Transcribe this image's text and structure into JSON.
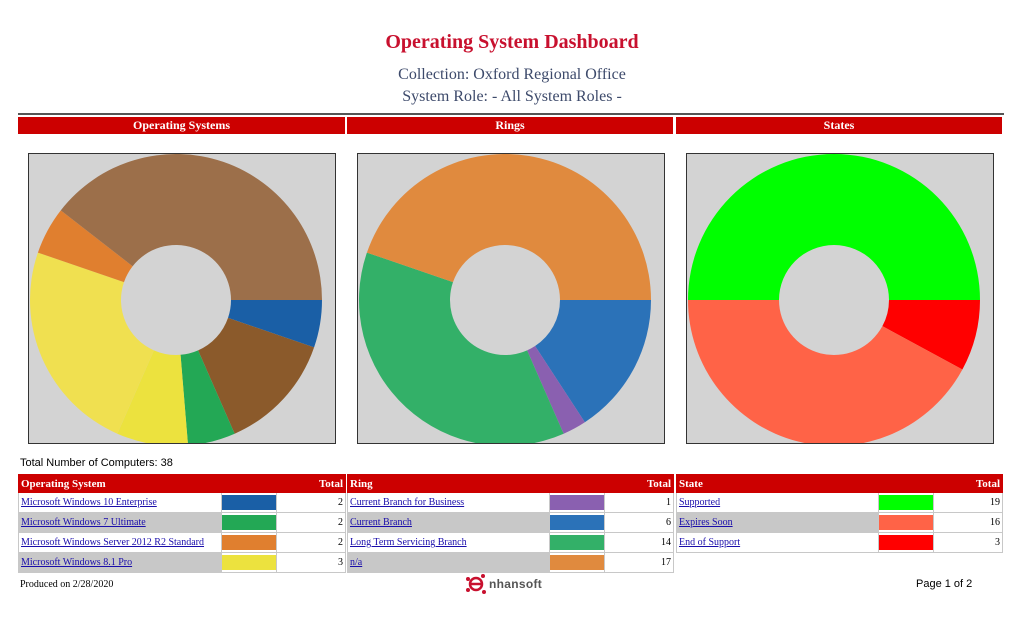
{
  "header": {
    "title": "Operating System Dashboard",
    "collection": "Collection: Oxford Regional Office",
    "system_role": "System Role: - All System Roles -"
  },
  "sections": {
    "os": "Operating Systems",
    "rings": "Rings",
    "states": "States"
  },
  "total_computers": "Total Number of Computers:  38",
  "tables": {
    "os": {
      "col_name": "Operating System",
      "col_total": "Total",
      "rows": [
        {
          "name": "Microsoft Windows 10 Enterprise",
          "color": "#1a5fa6",
          "total": "2"
        },
        {
          "name": "Microsoft Windows 7 Ultimate",
          "color": "#23a855",
          "total": "2"
        },
        {
          "name": "Microsoft Windows Server 2012 R2 Standard",
          "color": "#e07f2f",
          "total": "2"
        },
        {
          "name": "Microsoft Windows 8.1 Pro",
          "color": "#ece23e",
          "total": "3"
        }
      ]
    },
    "ring": {
      "col_name": "Ring",
      "col_total": "Total",
      "rows": [
        {
          "name": "Current Branch for Business",
          "color": "#8a60b0",
          "total": "1"
        },
        {
          "name": "Current Branch",
          "color": "#2b72b8",
          "total": "6"
        },
        {
          "name": "Long Term Servicing Branch",
          "color": "#33b068",
          "total": "14"
        },
        {
          "name": "n/a",
          "color": "#e08a3e",
          "total": "17"
        }
      ]
    },
    "state": {
      "col_name": "State",
      "col_total": "Total",
      "rows": [
        {
          "name": "Supported",
          "color": "#00ff00",
          "total": "19"
        },
        {
          "name": "Expires Soon",
          "color": "#ff6347",
          "total": "16"
        },
        {
          "name": "End of Support",
          "color": "#ff0000",
          "total": "3"
        }
      ]
    }
  },
  "chart_data": [
    {
      "type": "pie",
      "title": "Operating Systems",
      "categories": [
        "Microsoft Windows 10 Enterprise",
        "Other (unlabeled)",
        "Microsoft Windows 7 Ultimate",
        "Microsoft Windows 8.1 Pro",
        "Other (unlabeled)",
        "Microsoft Windows Server 2012 R2 Standard",
        "Other (unlabeled)"
      ],
      "values": [
        2,
        5,
        2,
        3,
        9,
        2,
        15
      ],
      "colors": [
        "#1a5fa6",
        "#8b5a2b",
        "#23a855",
        "#ece23e",
        "#f0e050",
        "#e07f2f",
        "#9c6f4a"
      ],
      "donut": true
    },
    {
      "type": "pie",
      "title": "Rings",
      "categories": [
        "Current Branch",
        "Current Branch for Business",
        "Long Term Servicing Branch",
        "n/a"
      ],
      "values": [
        6,
        1,
        14,
        17
      ],
      "colors": [
        "#2b72b8",
        "#8a60b0",
        "#33b068",
        "#e08a3e"
      ],
      "donut": true
    },
    {
      "type": "pie",
      "title": "States",
      "categories": [
        "End of Support",
        "Expires Soon",
        "Supported"
      ],
      "values": [
        3,
        16,
        19
      ],
      "colors": [
        "#ff0000",
        "#ff6347",
        "#00ff00"
      ],
      "donut": true
    }
  ],
  "footer": {
    "produced": "Produced on 2/28/2020",
    "logo_text": "nhansoft",
    "page": "Page 1 of 2"
  }
}
